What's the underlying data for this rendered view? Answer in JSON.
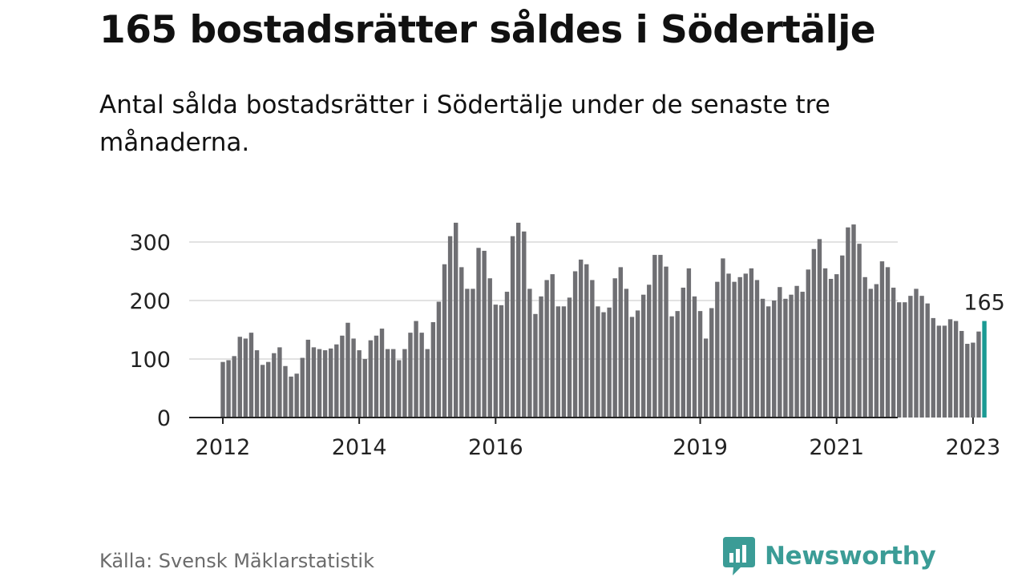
{
  "title": "165 bostadsrätter såldes i Södertälje",
  "subtitle": "Antal sålda bostadsrätter i Södertälje under de senaste tre månaderna.",
  "source": "Källa: Svensk Mäklarstatistik",
  "brand": {
    "name": "Newsworthy",
    "color": "#3b9c96",
    "icon": "bar-chart-bubble-icon"
  },
  "colors": {
    "bar": "#6f6f73",
    "highlight": "#1a9a93",
    "grid": "#d9d9d9",
    "axis": "#222222"
  },
  "chart_data": {
    "type": "bar",
    "title": "165 bostadsrätter såldes i Södertälje",
    "xlabel": "",
    "ylabel": "",
    "ylim": [
      0,
      340
    ],
    "yticks": [
      0,
      100,
      200,
      300
    ],
    "xticks": [
      {
        "label": "2012",
        "index": 0
      },
      {
        "label": "2014",
        "index": 24
      },
      {
        "label": "2016",
        "index": 48
      },
      {
        "label": "2019",
        "index": 84
      },
      {
        "label": "2021",
        "index": 108
      },
      {
        "label": "2023",
        "index": 132
      }
    ],
    "start": "2012-01",
    "end": "2023-03",
    "highlight_label": "165",
    "values": [
      95,
      98,
      105,
      138,
      135,
      145,
      115,
      90,
      95,
      110,
      120,
      88,
      70,
      75,
      102,
      133,
      120,
      117,
      115,
      118,
      125,
      140,
      162,
      135,
      115,
      100,
      132,
      140,
      152,
      117,
      117,
      98,
      117,
      145,
      165,
      145,
      117,
      163,
      198,
      262,
      310,
      333,
      257,
      220,
      220,
      290,
      285,
      238,
      193,
      192,
      215,
      310,
      333,
      318,
      220,
      177,
      207,
      235,
      245,
      190,
      190,
      205,
      250,
      270,
      262,
      235,
      190,
      180,
      188,
      238,
      257,
      220,
      172,
      183,
      210,
      227,
      278,
      278,
      258,
      173,
      182,
      222,
      255,
      207,
      182,
      135,
      187,
      232,
      272,
      246,
      232,
      240,
      246,
      255,
      235,
      203,
      190,
      200,
      223,
      203,
      210,
      225,
      215,
      253,
      288,
      305,
      255,
      237,
      245,
      277,
      325,
      330,
      297,
      240,
      220,
      228,
      267,
      257,
      222,
      197,
      197,
      208,
      220,
      208,
      195,
      170,
      157,
      157,
      168,
      165,
      148,
      126,
      128,
      147,
      165
    ]
  }
}
